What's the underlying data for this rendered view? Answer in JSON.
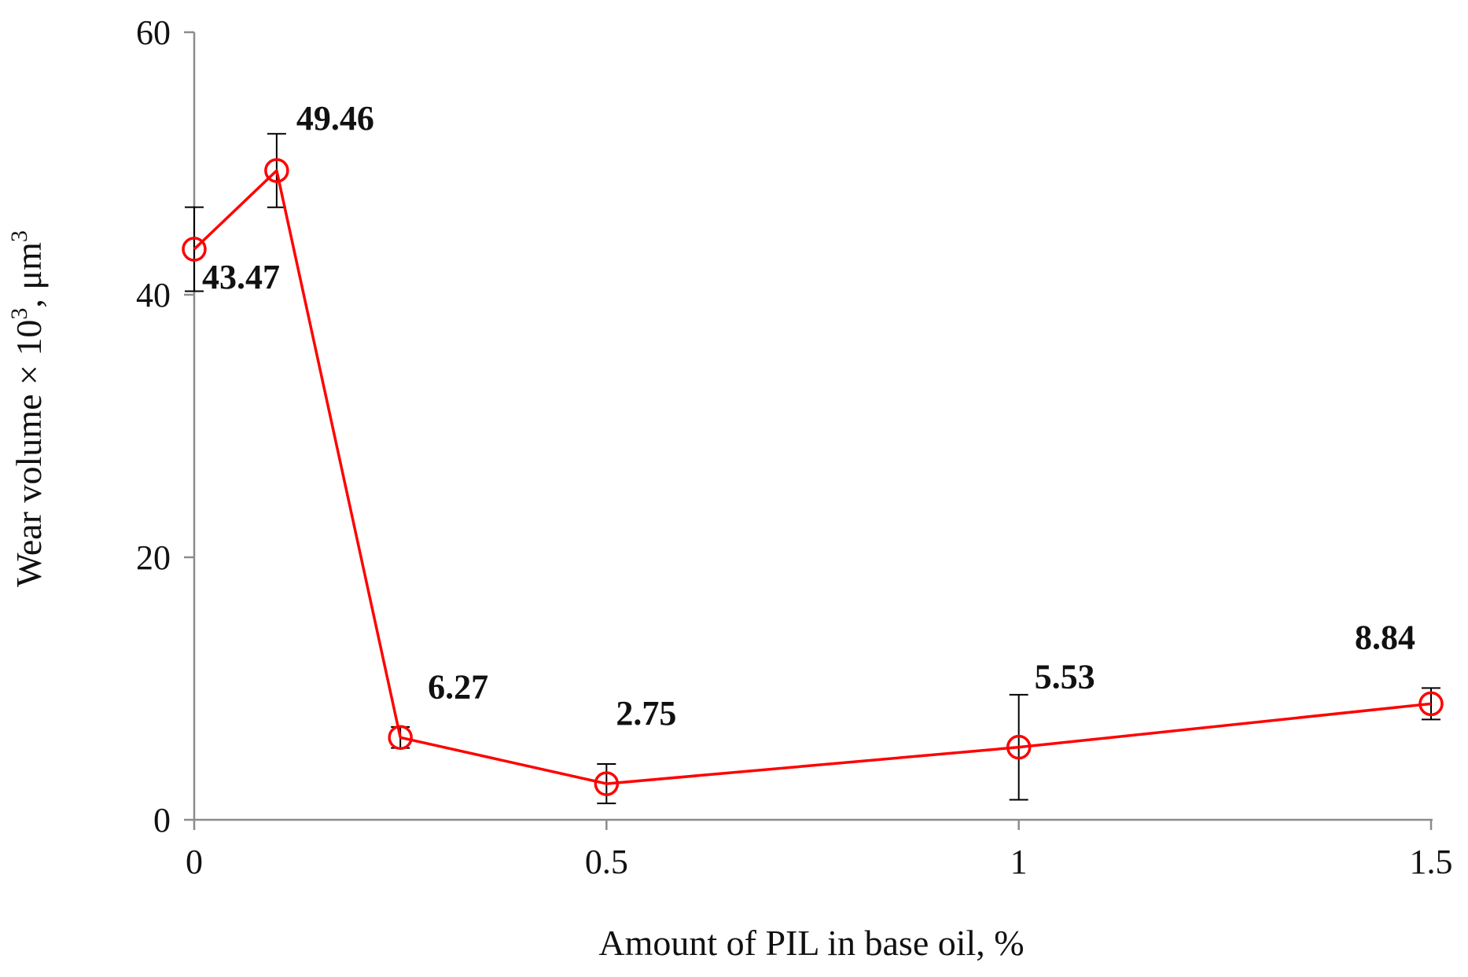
{
  "chart_data": {
    "type": "line",
    "xlabel": "Amount of PIL in base oil, %",
    "ylabel": {
      "prefix": "Wear volume × 10",
      "exp1": "3",
      "middle": ", μm",
      "exp2": "3"
    },
    "xlim": [
      0,
      1.5
    ],
    "ylim": [
      0,
      60
    ],
    "xticks": [
      0,
      0.5,
      1,
      1.5
    ],
    "xtick_labels": [
      "0",
      "0.5",
      "1",
      "1.5"
    ],
    "yticks": [
      0,
      20,
      40,
      60
    ],
    "ytick_labels": [
      "0",
      "20",
      "40",
      "60"
    ],
    "grid": false,
    "legend": "none",
    "series": [
      {
        "color": "#ff0000",
        "marker": "open-circle",
        "points": [
          {
            "x": 0,
            "y": 43.47,
            "err": 3.2,
            "label": "43.47"
          },
          {
            "x": 0.1,
            "y": 49.46,
            "err": 2.8,
            "label": "49.46"
          },
          {
            "x": 0.25,
            "y": 6.27,
            "err": 0.8,
            "label": "6.27"
          },
          {
            "x": 0.5,
            "y": 2.75,
            "err": 1.5,
            "label": "2.75"
          },
          {
            "x": 1,
            "y": 5.53,
            "err": 4.0,
            "label": "5.53"
          },
          {
            "x": 1.5,
            "y": 8.84,
            "err": 1.2,
            "label": "8.84"
          }
        ]
      }
    ]
  }
}
